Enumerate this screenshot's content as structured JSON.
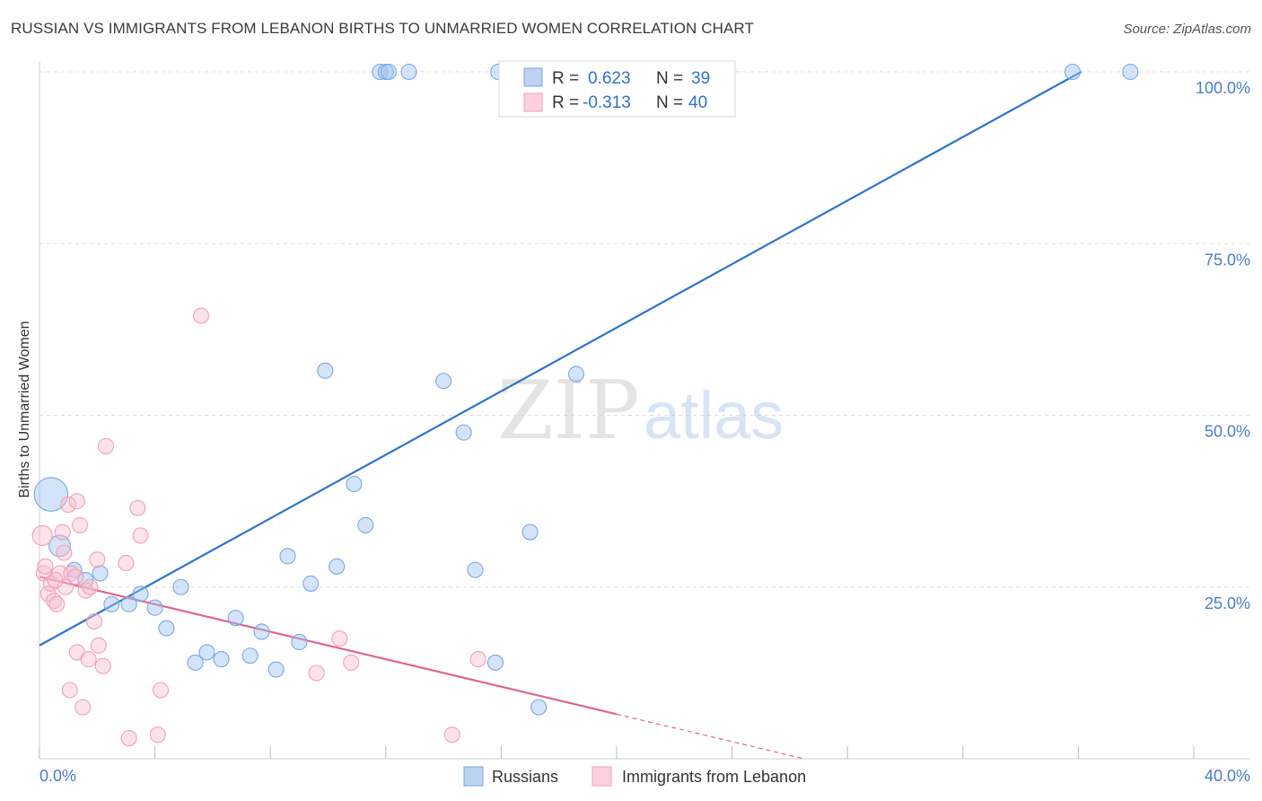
{
  "chart_data": {
    "type": "scatter",
    "title": "RUSSIAN VS IMMIGRANTS FROM LEBANON BIRTHS TO UNMARRIED WOMEN CORRELATION CHART",
    "source": "Source: ZipAtlas.com",
    "xlabel": "",
    "ylabel": "Births to Unmarried Women",
    "xlim": [
      0,
      40
    ],
    "ylim": [
      0,
      100
    ],
    "x_tick_labels": {
      "min": "0.0%",
      "max": "40.0%"
    },
    "y_ticks": [
      {
        "value": 100,
        "label": "100.0%"
      },
      {
        "value": 75,
        "label": "75.0%"
      },
      {
        "value": 50,
        "label": "50.0%"
      },
      {
        "value": 25,
        "label": "25.0%"
      }
    ],
    "watermark": {
      "part1": "ZIP",
      "part2": "atlas"
    },
    "series": [
      {
        "name": "Russians",
        "color": "#7ba7e0",
        "line_color": "#2f73c9",
        "stats": {
          "r_label": "R =",
          "r_value": "0.623",
          "n_label": "N =",
          "n_value": "39"
        },
        "trend": {
          "x0": 0,
          "y0": 16.5,
          "x1": 36.1,
          "y1": 100
        },
        "points": [
          {
            "x": 0.4,
            "y": 38.5,
            "size": 2.2
          },
          {
            "x": 0.7,
            "y": 31.0,
            "size": 1.4
          },
          {
            "x": 1.2,
            "y": 27.5,
            "size": 1
          },
          {
            "x": 1.6,
            "y": 26.0,
            "size": 1
          },
          {
            "x": 2.1,
            "y": 27.0,
            "size": 1
          },
          {
            "x": 2.5,
            "y": 22.5,
            "size": 1
          },
          {
            "x": 3.1,
            "y": 22.5,
            "size": 1
          },
          {
            "x": 3.5,
            "y": 24.0,
            "size": 1
          },
          {
            "x": 4.0,
            "y": 22.0,
            "size": 1
          },
          {
            "x": 4.4,
            "y": 19.0,
            "size": 1
          },
          {
            "x": 4.9,
            "y": 25.0,
            "size": 1
          },
          {
            "x": 5.4,
            "y": 14.0,
            "size": 1
          },
          {
            "x": 5.8,
            "y": 15.5,
            "size": 1
          },
          {
            "x": 6.3,
            "y": 14.5,
            "size": 1
          },
          {
            "x": 6.8,
            "y": 20.5,
            "size": 1
          },
          {
            "x": 7.3,
            "y": 15.0,
            "size": 1
          },
          {
            "x": 7.7,
            "y": 18.5,
            "size": 1
          },
          {
            "x": 8.2,
            "y": 13.0,
            "size": 1
          },
          {
            "x": 8.6,
            "y": 29.5,
            "size": 1
          },
          {
            "x": 9.0,
            "y": 17.0,
            "size": 1
          },
          {
            "x": 9.4,
            "y": 25.5,
            "size": 1
          },
          {
            "x": 9.9,
            "y": 56.5,
            "size": 1
          },
          {
            "x": 10.3,
            "y": 28.0,
            "size": 1
          },
          {
            "x": 10.9,
            "y": 40.0,
            "size": 1
          },
          {
            "x": 11.3,
            "y": 34.0,
            "size": 1
          },
          {
            "x": 11.8,
            "y": 100,
            "size": 1
          },
          {
            "x": 12.0,
            "y": 100,
            "size": 1
          },
          {
            "x": 12.1,
            "y": 100,
            "size": 1
          },
          {
            "x": 12.8,
            "y": 100,
            "size": 1
          },
          {
            "x": 14.0,
            "y": 55.0,
            "size": 1
          },
          {
            "x": 14.7,
            "y": 47.5,
            "size": 1
          },
          {
            "x": 15.1,
            "y": 27.5,
            "size": 1
          },
          {
            "x": 15.8,
            "y": 14.0,
            "size": 1
          },
          {
            "x": 15.9,
            "y": 100,
            "size": 1
          },
          {
            "x": 17.0,
            "y": 33.0,
            "size": 1
          },
          {
            "x": 17.3,
            "y": 7.5,
            "size": 1
          },
          {
            "x": 18.6,
            "y": 56.0,
            "size": 1
          },
          {
            "x": 35.8,
            "y": 100,
            "size": 1
          },
          {
            "x": 37.8,
            "y": 100,
            "size": 1
          }
        ]
      },
      {
        "name": "Immigrants from Lebanon",
        "color": "#f2a0b8",
        "line_color": "#e06590",
        "stats": {
          "r_label": "R =",
          "r_value": "-0.313",
          "n_label": "N =",
          "n_value": "40"
        },
        "trend": {
          "x0": 0,
          "y0": 26.5,
          "x1": 20.0,
          "y1": 6.5,
          "dash_x1": 26.5,
          "dash_y1": 0
        },
        "points": [
          {
            "x": 0.1,
            "y": 32.5,
            "size": 1.3
          },
          {
            "x": 0.15,
            "y": 27.0,
            "size": 1
          },
          {
            "x": 0.2,
            "y": 28.0,
            "size": 1
          },
          {
            "x": 0.3,
            "y": 24.0,
            "size": 1
          },
          {
            "x": 0.4,
            "y": 25.5,
            "size": 1
          },
          {
            "x": 0.5,
            "y": 23.0,
            "size": 1
          },
          {
            "x": 0.6,
            "y": 22.5,
            "size": 1
          },
          {
            "x": 0.7,
            "y": 27.0,
            "size": 1
          },
          {
            "x": 0.8,
            "y": 33.0,
            "size": 1
          },
          {
            "x": 0.85,
            "y": 30.0,
            "size": 1
          },
          {
            "x": 0.9,
            "y": 25.0,
            "size": 1
          },
          {
            "x": 1.0,
            "y": 37.0,
            "size": 1
          },
          {
            "x": 1.05,
            "y": 10.0,
            "size": 1
          },
          {
            "x": 1.1,
            "y": 27.0,
            "size": 1
          },
          {
            "x": 1.3,
            "y": 37.5,
            "size": 1
          },
          {
            "x": 1.3,
            "y": 15.5,
            "size": 1
          },
          {
            "x": 1.4,
            "y": 34.0,
            "size": 1
          },
          {
            "x": 1.5,
            "y": 7.5,
            "size": 1
          },
          {
            "x": 1.6,
            "y": 24.5,
            "size": 1
          },
          {
            "x": 1.7,
            "y": 14.5,
            "size": 1
          },
          {
            "x": 1.75,
            "y": 25.0,
            "size": 1
          },
          {
            "x": 1.9,
            "y": 20.0,
            "size": 1
          },
          {
            "x": 2.0,
            "y": 29.0,
            "size": 1
          },
          {
            "x": 2.05,
            "y": 16.5,
            "size": 1
          },
          {
            "x": 2.2,
            "y": 13.5,
            "size": 1
          },
          {
            "x": 2.3,
            "y": 45.5,
            "size": 1
          },
          {
            "x": 3.0,
            "y": 28.5,
            "size": 1
          },
          {
            "x": 3.1,
            "y": 3.0,
            "size": 1
          },
          {
            "x": 3.4,
            "y": 36.5,
            "size": 1
          },
          {
            "x": 3.5,
            "y": 32.5,
            "size": 1
          },
          {
            "x": 4.1,
            "y": 3.5,
            "size": 1
          },
          {
            "x": 4.2,
            "y": 10.0,
            "size": 1
          },
          {
            "x": 5.6,
            "y": 64.5,
            "size": 1
          },
          {
            "x": 9.6,
            "y": 12.5,
            "size": 1
          },
          {
            "x": 10.4,
            "y": 17.5,
            "size": 1
          },
          {
            "x": 10.8,
            "y": 14.0,
            "size": 1
          },
          {
            "x": 14.3,
            "y": 3.5,
            "size": 1
          },
          {
            "x": 15.2,
            "y": 14.5,
            "size": 1
          },
          {
            "x": 0.55,
            "y": 26.0,
            "size": 1
          },
          {
            "x": 1.25,
            "y": 26.5,
            "size": 1
          }
        ]
      }
    ]
  }
}
